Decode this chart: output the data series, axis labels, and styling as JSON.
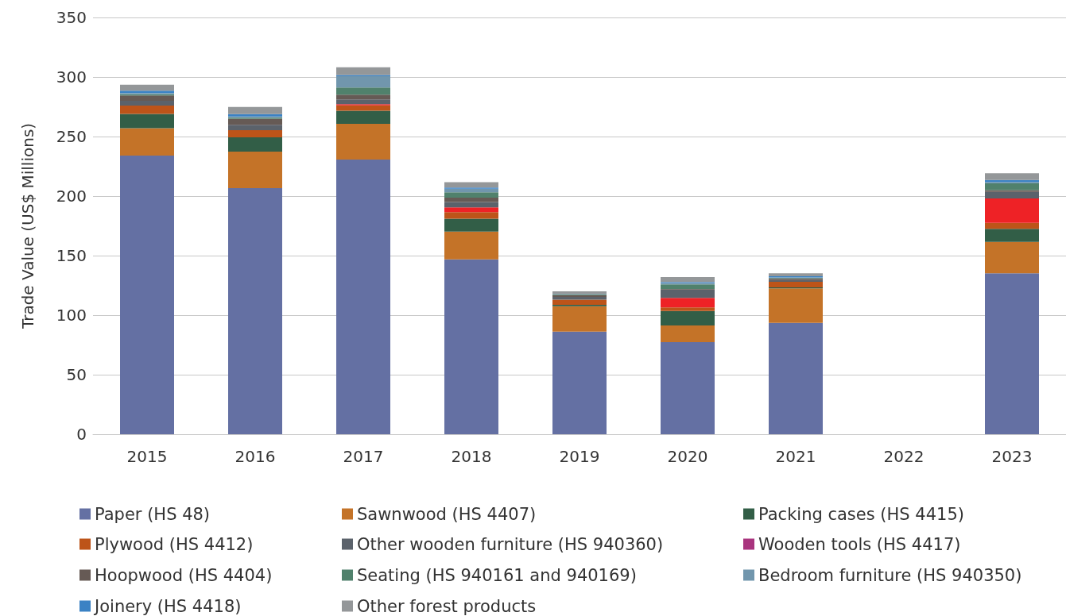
{
  "chart_data": {
    "type": "bar",
    "stacked": true,
    "ylabel": "Trade Value (US$ Millions)",
    "categories": [
      "2015",
      "2016",
      "2017",
      "2018",
      "2019",
      "2020",
      "2021",
      "2022",
      "2023"
    ],
    "ylim": [
      0,
      350
    ],
    "yticks": [
      0,
      50,
      100,
      150,
      200,
      250,
      300,
      350
    ],
    "grid": "y",
    "legend": "bottom",
    "series": [
      {
        "name": "Paper (HS 48)",
        "color": "#6470a3",
        "values": [
          234,
          206.7,
          230.7,
          146.9,
          86.2,
          77.3,
          93.5,
          null,
          135.1
        ]
      },
      {
        "name": "Sawnwood (HS 4407)",
        "color": "#c47328",
        "values": [
          23,
          30.6,
          30,
          23.3,
          21.3,
          14,
          29,
          null,
          26.4
        ]
      },
      {
        "name": "Packing cases (HS 4415)",
        "color": "#325e47",
        "values": [
          12,
          12,
          11,
          10.8,
          1.2,
          12.2,
          0.8,
          null,
          11
        ]
      },
      {
        "name": "Plywood (HS 4412)",
        "color": "#bd5419",
        "values": [
          7,
          6,
          4.5,
          5.5,
          4.3,
          3,
          4.7,
          null,
          5
        ]
      },
      {
        "color": "#ee2226",
        "values": [
          0,
          0,
          1,
          4,
          0,
          8,
          0,
          null,
          20.5
        ]
      },
      {
        "name": "Other wooden furniture (HS 940360)",
        "color": "#5b626b",
        "values": [
          4,
          4.5,
          4,
          4.5,
          2.3,
          7,
          1.5,
          null,
          5.5
        ]
      },
      {
        "name": "Wooden tools (HS 4417)",
        "color": "#a9347e",
        "values": [
          0,
          0,
          0,
          0,
          0,
          0,
          0,
          null,
          0
        ]
      },
      {
        "name": "Hoopwood (HS 4404)",
        "color": "#665a55",
        "values": [
          4.5,
          5,
          4,
          3.7,
          1.5,
          0.5,
          1.2,
          null,
          1.5
        ]
      },
      {
        "name": "Seating (HS 940161 and 940169)",
        "color": "#50816c",
        "values": [
          1,
          1,
          6,
          4.5,
          0.5,
          3.8,
          0.5,
          null,
          5.7
        ]
      },
      {
        "name": "Bedroom furniture (HS 940350)",
        "color": "#7196ad",
        "values": [
          1,
          1,
          9.5,
          3,
          0.5,
          1.2,
          0.5,
          null,
          1.1
        ]
      },
      {
        "name": "Joinery (HS 4418)",
        "color": "#3b82c4",
        "values": [
          2,
          2,
          1,
          1,
          null,
          0.8,
          1,
          null,
          1.7
        ]
      },
      {
        "name": "Other forest products",
        "color": "#949799",
        "values": [
          5,
          6,
          6.5,
          4.5,
          2.2,
          4.2,
          2.4,
          null,
          5.6
        ]
      }
    ]
  }
}
